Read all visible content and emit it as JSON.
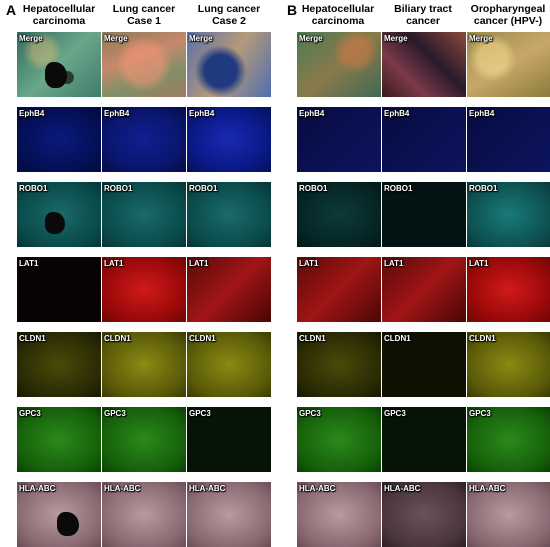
{
  "panels": [
    {
      "letter": "A",
      "columns": [
        {
          "line1": "Hepatocellular",
          "line2": "carcinoma"
        },
        {
          "line1": "Lung cancer",
          "line2": "Case 1"
        },
        {
          "line1": "Lung cancer",
          "line2": "Case 2"
        }
      ]
    },
    {
      "letter": "B",
      "columns": [
        {
          "line1": "Hepatocellular",
          "line2": "carcinoma"
        },
        {
          "line1": "Biliary  tract",
          "line2": "cancer"
        },
        {
          "line1": "Oropharyngeal",
          "line2": "cancer (HPV-)"
        }
      ]
    }
  ],
  "row_labels": [
    "Merge",
    "EphB4",
    "ROBO1",
    "LAT1",
    "CLDN1",
    "GPC3",
    "HLA-ABC"
  ]
}
